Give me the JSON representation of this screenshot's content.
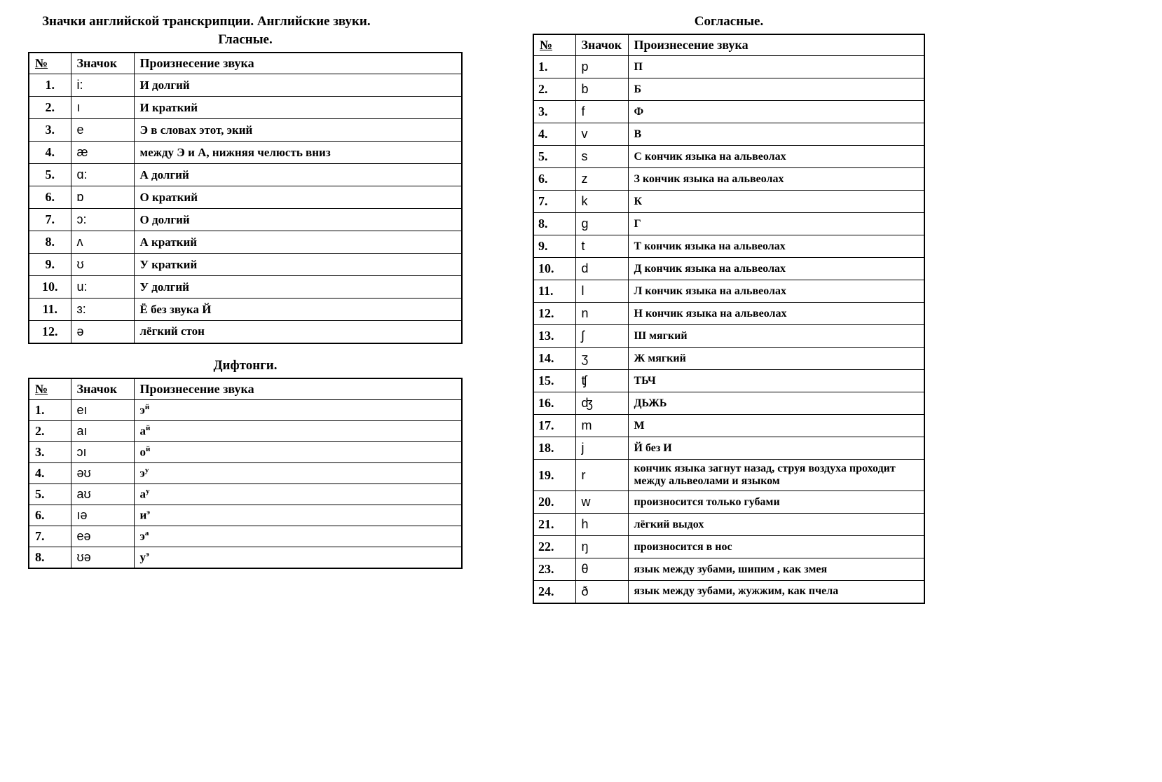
{
  "main_title": "Значки английской транскрипции. Английские звуки.",
  "vowels": {
    "title": "Гласные.",
    "headers": {
      "num": "№",
      "symbol": "Значок",
      "desc": "Произнесение звука"
    },
    "rows": [
      {
        "num": "1.",
        "symbol": "i:",
        "desc": "И долгий"
      },
      {
        "num": "2.",
        "symbol": "ı",
        "desc": "И краткий"
      },
      {
        "num": "3.",
        "symbol": "e",
        "desc": "Э в словах этот, экий"
      },
      {
        "num": "4.",
        "symbol": "æ",
        "desc": "между Э и А, нижняя челюсть вниз"
      },
      {
        "num": "5.",
        "symbol": "ɑ:",
        "desc": "А долгий"
      },
      {
        "num": "6.",
        "symbol": "ɒ",
        "desc": "О краткий"
      },
      {
        "num": "7.",
        "symbol": "ɔ:",
        "desc": "О долгий"
      },
      {
        "num": "8.",
        "symbol": "ʌ",
        "desc": "А краткий"
      },
      {
        "num": "9.",
        "symbol": "ʊ",
        "desc": "У краткий"
      },
      {
        "num": "10.",
        "symbol": "u:",
        "desc": "У долгий"
      },
      {
        "num": "11.",
        "symbol": "ɜ:",
        "desc": "Ё без звука Й"
      },
      {
        "num": "12.",
        "symbol": "ə",
        "desc": "лёгкий стон"
      }
    ]
  },
  "diphthongs": {
    "title": "Дифтонги.",
    "headers": {
      "num": "№",
      "symbol": "Значок",
      "desc": "Произнесение звука"
    },
    "rows": [
      {
        "num": "1.",
        "symbol": "eı",
        "desc_html": "э<sup>й</sup>"
      },
      {
        "num": "2.",
        "symbol": "aı",
        "desc_html": "а<sup>й</sup>"
      },
      {
        "num": "3.",
        "symbol": "ɔı",
        "desc_html": "о<sup>й</sup>"
      },
      {
        "num": "4.",
        "symbol": "əʊ",
        "desc_html": "э<sup>у</sup>"
      },
      {
        "num": "5.",
        "symbol": "aʊ",
        "desc_html": "а<sup>у</sup>"
      },
      {
        "num": "6.",
        "symbol": "ıə",
        "desc_html": "и<sup>э</sup>"
      },
      {
        "num": "7.",
        "symbol": "eə",
        "desc_html": "э<sup>а</sup>"
      },
      {
        "num": "8.",
        "symbol": "ʊə",
        "desc_html": "у<sup>э</sup>"
      }
    ]
  },
  "consonants": {
    "title": "Согласные.",
    "headers": {
      "num": "№",
      "symbol": "Значок",
      "desc": "Произнесение звука"
    },
    "rows": [
      {
        "num": "1.",
        "symbol": "p",
        "desc": "П"
      },
      {
        "num": "2.",
        "symbol": "b",
        "desc": "Б"
      },
      {
        "num": "3.",
        "symbol": "f",
        "desc": "Ф"
      },
      {
        "num": "4.",
        "symbol": "v",
        "desc": "В"
      },
      {
        "num": "5.",
        "symbol": "s",
        "desc": "С кончик языка на альвеолах"
      },
      {
        "num": "6.",
        "symbol": "z",
        "desc": "З кончик языка на альвеолах"
      },
      {
        "num": "7.",
        "symbol": "k",
        "desc": "К"
      },
      {
        "num": "8.",
        "symbol": "g",
        "desc": "Г"
      },
      {
        "num": "9.",
        "symbol": "t",
        "desc": "Т кончик языка на альвеолах"
      },
      {
        "num": "10.",
        "symbol": "d",
        "desc": "Д кончик языка на альвеолах"
      },
      {
        "num": "11.",
        "symbol": "l",
        "desc": "Л кончик языка на альвеолах"
      },
      {
        "num": "12.",
        "symbol": "n",
        "desc": "Н кончик языка на альвеолах"
      },
      {
        "num": "13.",
        "symbol": "ʃ",
        "desc": "Ш мягкий"
      },
      {
        "num": "14.",
        "symbol": "ʒ",
        "desc": "Ж мягкий"
      },
      {
        "num": "15.",
        "symbol": "ʧ",
        "desc": "ТЬЧ"
      },
      {
        "num": "16.",
        "symbol": "ʤ",
        "desc": "ДЬЖЬ"
      },
      {
        "num": "17.",
        "symbol": "m",
        "desc": "М"
      },
      {
        "num": "18.",
        "symbol": "j",
        "desc": "Й без И"
      },
      {
        "num": "19.",
        "symbol": "r",
        "desc": "кончик языка загнут назад, струя воздуха проходит между альвеолами и языком"
      },
      {
        "num": "20.",
        "symbol": "w",
        "desc": "произносится только губами"
      },
      {
        "num": "21.",
        "symbol": "h",
        "desc": "лёгкий выдох"
      },
      {
        "num": "22.",
        "symbol": "ŋ",
        "desc": "произносится в нос"
      },
      {
        "num": "23.",
        "symbol": "θ",
        "desc": "язык между зубами, шипим , как змея"
      },
      {
        "num": "24.",
        "symbol": "ð",
        "desc": "язык между зубами, жужжим, как пчела"
      }
    ]
  },
  "styling": {
    "border_color": "#000000",
    "background_color": "#ffffff",
    "font_family_main": "Times New Roman",
    "font_family_symbols": "Arial",
    "title_fontsize": 19,
    "header_fontsize": 18,
    "cell_fontsize": 17,
    "border_width": 1.5,
    "outer_border_width": 2
  }
}
